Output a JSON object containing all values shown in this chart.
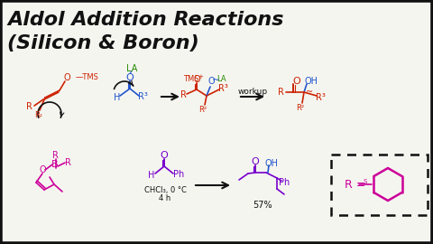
{
  "title_line1": "Aldol Addition Reactions",
  "title_line2": "(Silicon & Boron)",
  "bg_color": "#f5f5f0",
  "text_black": "#111111",
  "text_red": "#cc2200",
  "text_blue": "#2255cc",
  "text_green": "#228800",
  "text_magenta": "#cc0099",
  "text_purple": "#7700cc",
  "workup_label": "workup",
  "yield_label": "57%",
  "cond1": "CHCl₃, 0 °C",
  "cond2": "4 h"
}
